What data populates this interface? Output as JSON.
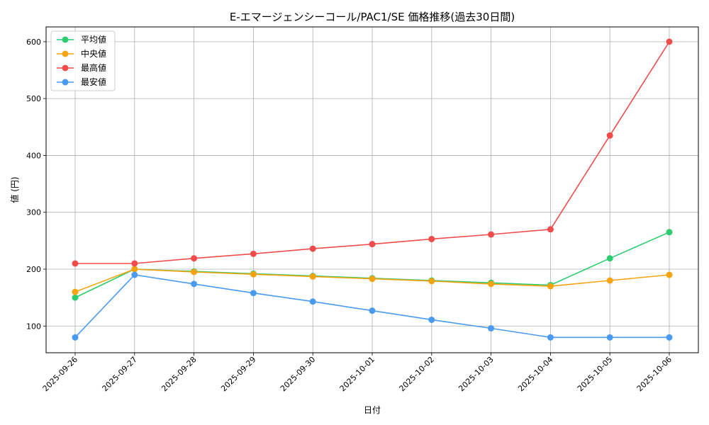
{
  "chart_data": {
    "type": "line",
    "title": "E-エマージェンシーコール/PAC1/SE 価格推移(過去30日間)",
    "xlabel": "日付",
    "ylabel": "値 (円)",
    "categories": [
      "2025-09-26",
      "2025-09-27",
      "2025-09-28",
      "2025-09-29",
      "2025-09-30",
      "2025-10-01",
      "2025-10-02",
      "2025-10-03",
      "2025-10-04",
      "2025-10-05",
      "2025-10-06"
    ],
    "y_ticks": [
      100,
      200,
      300,
      400,
      500,
      600
    ],
    "ylim": [
      53,
      626
    ],
    "grid": true,
    "legend_position": "top-left",
    "series": [
      {
        "name": "平均値",
        "color": "#2ecc71",
        "values": [
          150,
          200,
          196,
          192,
          188,
          184,
          180,
          176,
          172,
          219,
          265
        ]
      },
      {
        "name": "中央値",
        "color": "#f5a30f",
        "values": [
          160,
          200,
          195,
          191,
          187,
          183,
          179,
          174,
          170,
          180,
          190
        ]
      },
      {
        "name": "最高値",
        "color": "#f04c4c",
        "values": [
          210,
          210,
          219,
          227,
          236,
          244,
          253,
          261,
          270,
          435,
          600
        ]
      },
      {
        "name": "最安値",
        "color": "#4a9af0",
        "values": [
          80,
          190,
          174,
          158,
          143,
          127,
          111,
          96,
          80,
          80,
          80
        ]
      }
    ]
  }
}
